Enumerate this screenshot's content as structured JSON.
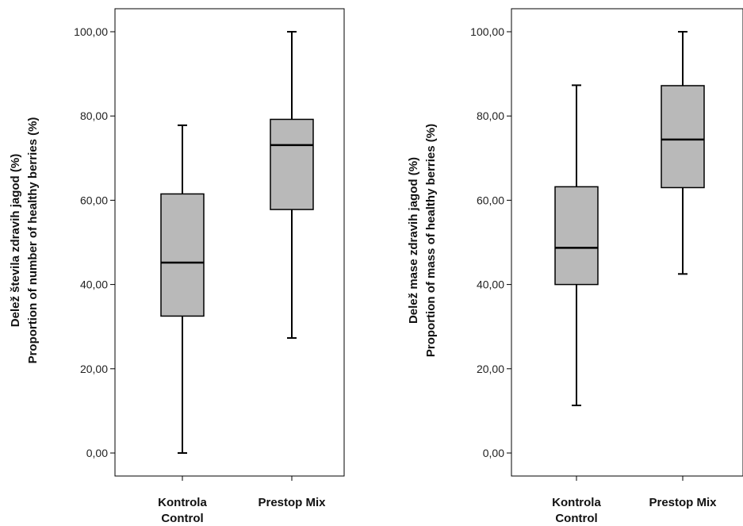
{
  "chart_data": [
    {
      "type": "boxplot",
      "ylabel_line1": "Delež števila zdravih jagod (%)",
      "ylabel_line2": "Proportion of number of healthy berries (%)",
      "ylim": [
        0,
        100
      ],
      "yticks": [
        "0,00",
        "20,00",
        "40,00",
        "60,00",
        "80,00",
        "100,00"
      ],
      "categories": [
        [
          "Kontrola",
          "Control"
        ],
        [
          "Prestop Mix"
        ]
      ],
      "boxes": [
        {
          "min": 0.0,
          "q1": 32.5,
          "median": 45.2,
          "q3": 61.5,
          "max": 77.8
        },
        {
          "min": 27.3,
          "q1": 57.8,
          "median": 73.1,
          "q3": 79.2,
          "max": 100.0
        }
      ],
      "box_color": "#b9b9b9",
      "grid": false
    },
    {
      "type": "boxplot",
      "ylabel_line1": "Delež mase zdravih jagod (%)",
      "ylabel_line2": "Proportion of mass of healthy berries (%)",
      "ylim": [
        0,
        100
      ],
      "yticks": [
        "0,00",
        "20,00",
        "40,00",
        "60,00",
        "80,00",
        "100,00"
      ],
      "categories": [
        [
          "Kontrola",
          "Control"
        ],
        [
          "Prestop Mix"
        ]
      ],
      "boxes": [
        {
          "min": 11.3,
          "q1": 40.0,
          "median": 48.7,
          "q3": 63.2,
          "max": 87.3
        },
        {
          "min": 42.5,
          "q1": 63.0,
          "median": 74.4,
          "q3": 87.2,
          "max": 100.0
        }
      ],
      "box_color": "#b9b9b9",
      "grid": false
    }
  ]
}
